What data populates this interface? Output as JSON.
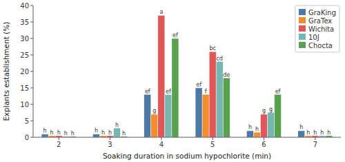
{
  "chart_data": {
    "type": "bar",
    "categories": [
      2,
      3,
      4,
      5,
      6,
      7
    ],
    "series": [
      {
        "name": "GraKing",
        "color": "#4e79a7",
        "values": [
          1.0,
          1.0,
          13.0,
          15.0,
          2.0,
          2.0
        ],
        "value_labels": [
          "h",
          "h",
          "ef",
          "ef",
          "h",
          "h"
        ]
      },
      {
        "name": "GraTex",
        "color": "#f28e2b",
        "values": [
          0.5,
          0.5,
          7.0,
          13.0,
          1.5,
          0.5
        ],
        "value_labels": [
          "h",
          "h",
          "g",
          "f",
          "h",
          "h"
        ]
      },
      {
        "name": "Wichita",
        "color": "#e15759",
        "values": [
          0.5,
          0.5,
          37.0,
          26.0,
          7.0,
          0.5
        ],
        "value_labels": [
          "h",
          "h",
          "a",
          "bc",
          "g",
          "h"
        ]
      },
      {
        "name": "10J",
        "color": "#76b7b2",
        "values": [
          0.3,
          2.8,
          13.0,
          23.0,
          7.5,
          0.5
        ],
        "value_labels": [
          "h",
          "h",
          "ef",
          "cd",
          "g",
          "h"
        ]
      },
      {
        "name": "Chocta",
        "color": "#59a14f",
        "values": [
          0.3,
          0.3,
          30.0,
          18.0,
          13.0,
          0.5
        ],
        "value_labels": [
          "h",
          "h",
          "ef",
          "de",
          "ef",
          "h"
        ]
      }
    ],
    "xlabel": "Soaking duration in sodium hypochlorite (min)",
    "ylabel": "Explants establishment (%)",
    "ylim": [
      0,
      40
    ],
    "yticks": [
      0,
      5,
      10,
      15,
      20,
      25,
      30,
      35,
      40
    ],
    "grid": false,
    "legend": "upper right"
  }
}
